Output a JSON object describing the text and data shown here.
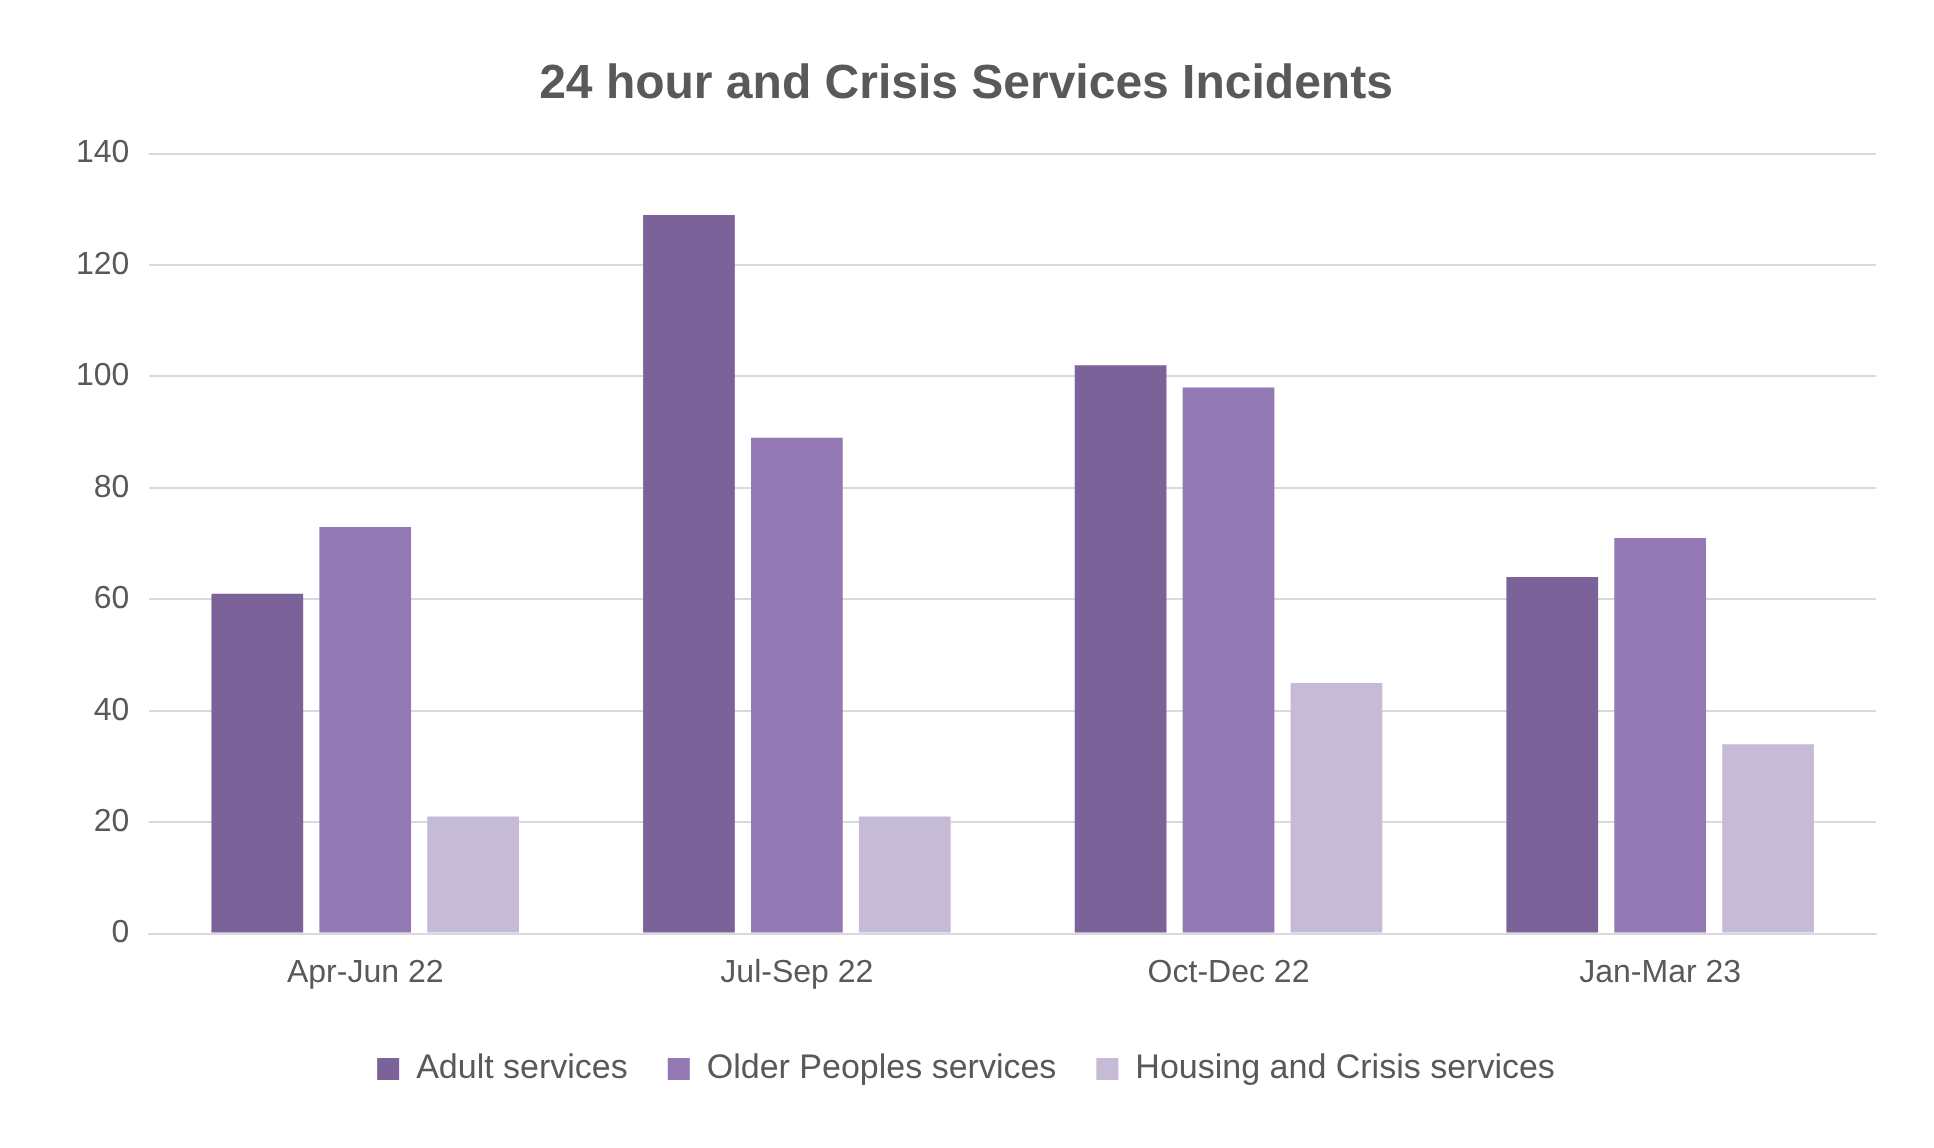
{
  "chart_data": {
    "type": "bar",
    "title": "24 hour and Crisis Services Incidents",
    "categories": [
      "Apr-Jun 22",
      "Jul-Sep 22",
      "Oct-Dec 22",
      "Jan-Mar 23"
    ],
    "series": [
      {
        "name": "Adult services",
        "color": "#7b6399",
        "values": [
          61,
          129,
          102,
          64
        ]
      },
      {
        "name": "Older Peoples services",
        "color": "#9279b3",
        "values": [
          73,
          89,
          98,
          71
        ]
      },
      {
        "name": "Housing and Crisis services",
        "color": "#c5bbd6",
        "values": [
          21,
          21,
          45,
          34
        ]
      }
    ],
    "ylim": [
      0,
      140
    ],
    "yticks": [
      0,
      20,
      40,
      60,
      80,
      100,
      120,
      140
    ],
    "grid": "y",
    "legend": "bottom"
  }
}
